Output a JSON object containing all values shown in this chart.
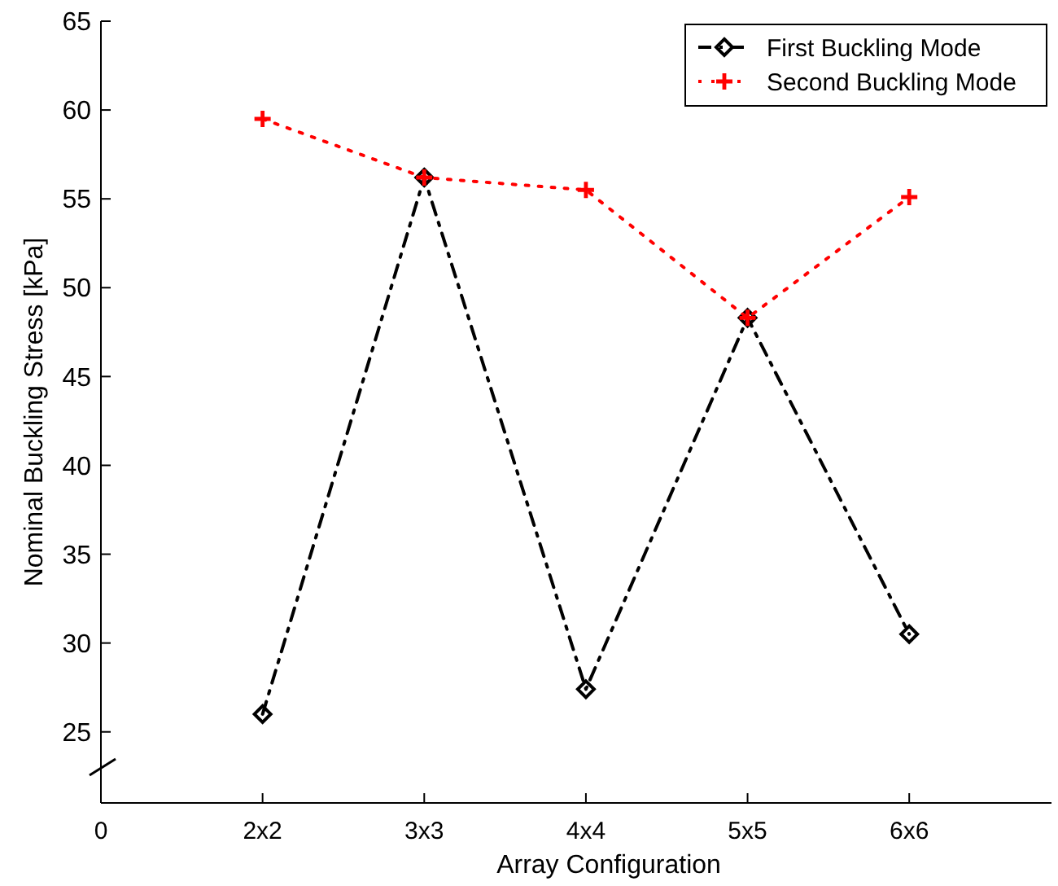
{
  "chart_data": {
    "type": "line",
    "xlabel": "Array Configuration",
    "ylabel": "Nominal Buckling Stress [kPa]",
    "categories": [
      "0",
      "2x2",
      "3x3",
      "4x4",
      "5x5",
      "6x6"
    ],
    "series": [
      {
        "name": "First Buckling Mode",
        "color": "#000000",
        "marker": "diamond",
        "line_style": "dashdot",
        "values": [
          null,
          26.0,
          56.2,
          27.4,
          48.3,
          30.5
        ]
      },
      {
        "name": "Second Buckling Mode",
        "color": "#ff0000",
        "marker": "cross",
        "line_style": "dotted",
        "values": [
          null,
          59.5,
          56.2,
          55.5,
          48.3,
          55.1
        ]
      }
    ],
    "ylim": [
      21,
      65
    ],
    "yticks": [
      25,
      30,
      35,
      40,
      45,
      50,
      55,
      60,
      65
    ],
    "grid": false,
    "legend": "top right"
  }
}
